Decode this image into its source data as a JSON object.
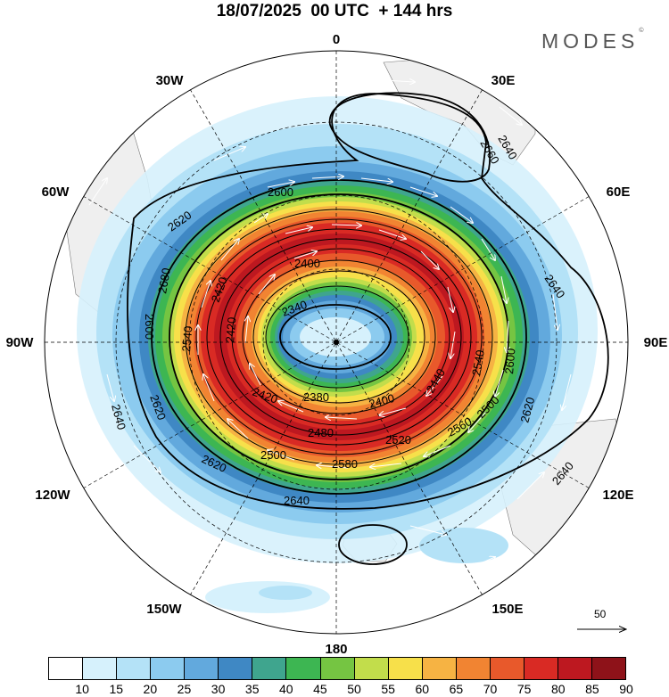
{
  "title": "18/07/2025  00 UTC  + 144 hrs",
  "brand": "MODES",
  "brand_mark": "©",
  "longitude_labels": [
    "0",
    "30E",
    "60E",
    "90E",
    "120E",
    "150E",
    "180",
    "150W",
    "120W",
    "90W",
    "60W",
    "30W"
  ],
  "contour_labels": [
    "2660",
    "2600",
    "2620",
    "2640",
    "2680",
    "2600",
    "2540",
    "2420",
    "2400",
    "2340",
    "2380",
    "2400",
    "2420",
    "2440",
    "2540",
    "2600",
    "2620",
    "2640",
    "2620",
    "2640",
    "2580",
    "2560",
    "2500",
    "2520",
    "2480",
    "2640",
    "2620",
    "2640",
    "2420",
    "2500"
  ],
  "wind_reference": {
    "label": "50"
  },
  "colorbar": {
    "ticks": [
      "10",
      "15",
      "20",
      "25",
      "30",
      "35",
      "40",
      "45",
      "50",
      "55",
      "60",
      "65",
      "70",
      "75",
      "80",
      "85",
      "90"
    ],
    "colors": [
      "#ffffff",
      "#d6f1fc",
      "#b4e2f7",
      "#8ccbef",
      "#62a9dd",
      "#3f88c4",
      "#3fa58e",
      "#3db652",
      "#75c542",
      "#c2dd4b",
      "#f7e04a",
      "#f6b343",
      "#f18432",
      "#e8592b",
      "#d92a24",
      "#bd1820",
      "#8e1219"
    ]
  },
  "chart_data": {
    "type": "polar-stereographic contour map",
    "fields": {
      "shaded": "wind speed",
      "contours": "geopotential height",
      "vectors": "wind direction"
    },
    "contour_levels": [
      2340,
      2380,
      2400,
      2420,
      2440,
      2480,
      2500,
      2520,
      2540,
      2560,
      2580,
      2600,
      2620,
      2640,
      2660,
      2680
    ],
    "shading_levels": [
      10,
      15,
      20,
      25,
      30,
      35,
      40,
      45,
      50,
      55,
      60,
      65,
      70,
      75,
      80,
      85,
      90
    ]
  }
}
